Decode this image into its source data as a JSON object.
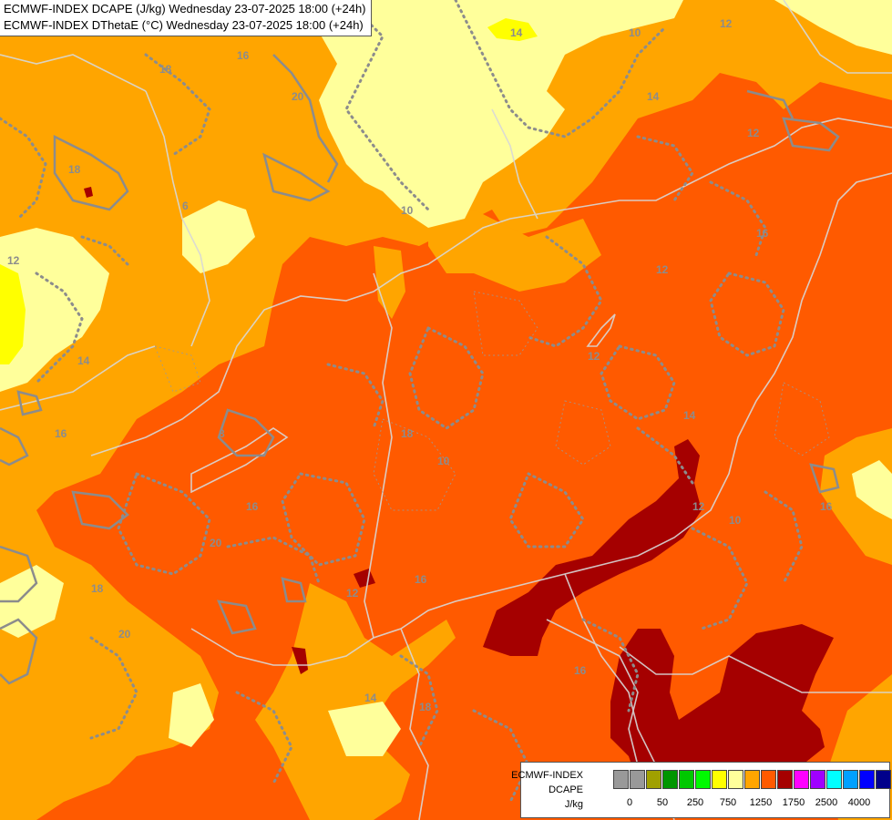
{
  "header": {
    "line1": "ECMWF-INDEX DCAPE (J/kg) Wednesday 23-07-2025 18:00 (+24h)",
    "line2": "ECMWF-INDEX DThetaE (°C) Wednesday 23-07-2025 18:00 (+24h)"
  },
  "legend": {
    "line1": "ECMWF-INDEX",
    "line2": "DCAPE",
    "line3": "J/kg",
    "colors": [
      "#999999",
      "#999999",
      "#a0a000",
      "#009600",
      "#00c800",
      "#00fa00",
      "#ffff00",
      "#ffff9b",
      "#ffa500",
      "#ff5a00",
      "#a50000",
      "#ff00ff",
      "#a000ff",
      "#00ffff",
      "#00a0ff",
      "#0000ff",
      "#00008b"
    ],
    "ticks": [
      {
        "label": "0",
        "pos": 1
      },
      {
        "label": "50",
        "pos": 3
      },
      {
        "label": "250",
        "pos": 5
      },
      {
        "label": "750",
        "pos": 7
      },
      {
        "label": "1250",
        "pos": 9
      },
      {
        "label": "1750",
        "pos": 11
      },
      {
        "label": "2500",
        "pos": 13
      },
      {
        "label": "4000",
        "pos": 15
      }
    ]
  },
  "map_labels": [
    "14",
    "16",
    "18",
    "20",
    "18",
    "12",
    "10",
    "12",
    "10",
    "14",
    "12",
    "16",
    "18",
    "16",
    "20",
    "10",
    "12",
    "16",
    "14",
    "16",
    "12",
    "14",
    "16",
    "18",
    "20",
    "12",
    "18",
    "14",
    "16",
    "12",
    "10",
    "8",
    "6"
  ],
  "colors": {
    "dcape_1250": "#ff5a00",
    "dcape_750": "#ffa500",
    "dcape_500": "#ffff9b",
    "dcape_250": "#ffff00",
    "dcape_1500": "#a50000",
    "contour": "#8c8c8c",
    "border": "#d8d8d8"
  }
}
